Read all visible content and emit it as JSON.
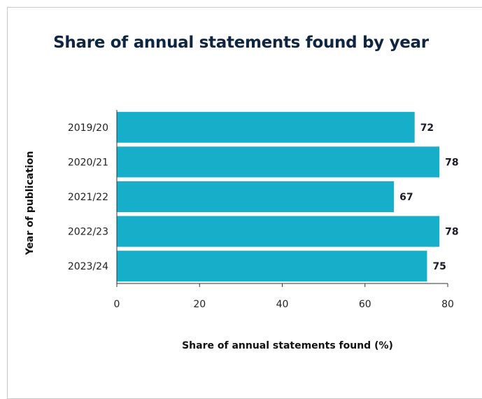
{
  "chart_data": {
    "type": "bar",
    "orientation": "horizontal",
    "title": "Share of annual statements found by year",
    "xlabel": "Share of annual statements found (%)",
    "ylabel": "Year of publication",
    "categories": [
      "2019/20",
      "2020/21",
      "2021/22",
      "2022/23",
      "2023/24"
    ],
    "values": [
      72,
      78,
      67,
      78,
      75
    ],
    "data_labels": [
      "72",
      "78",
      "67",
      "78",
      "75"
    ],
    "xlim": [
      0,
      80
    ],
    "xticks": [
      "0",
      "20",
      "40",
      "60",
      "80"
    ],
    "bar_color": "#17aec9",
    "grid": false,
    "legend": "none"
  }
}
